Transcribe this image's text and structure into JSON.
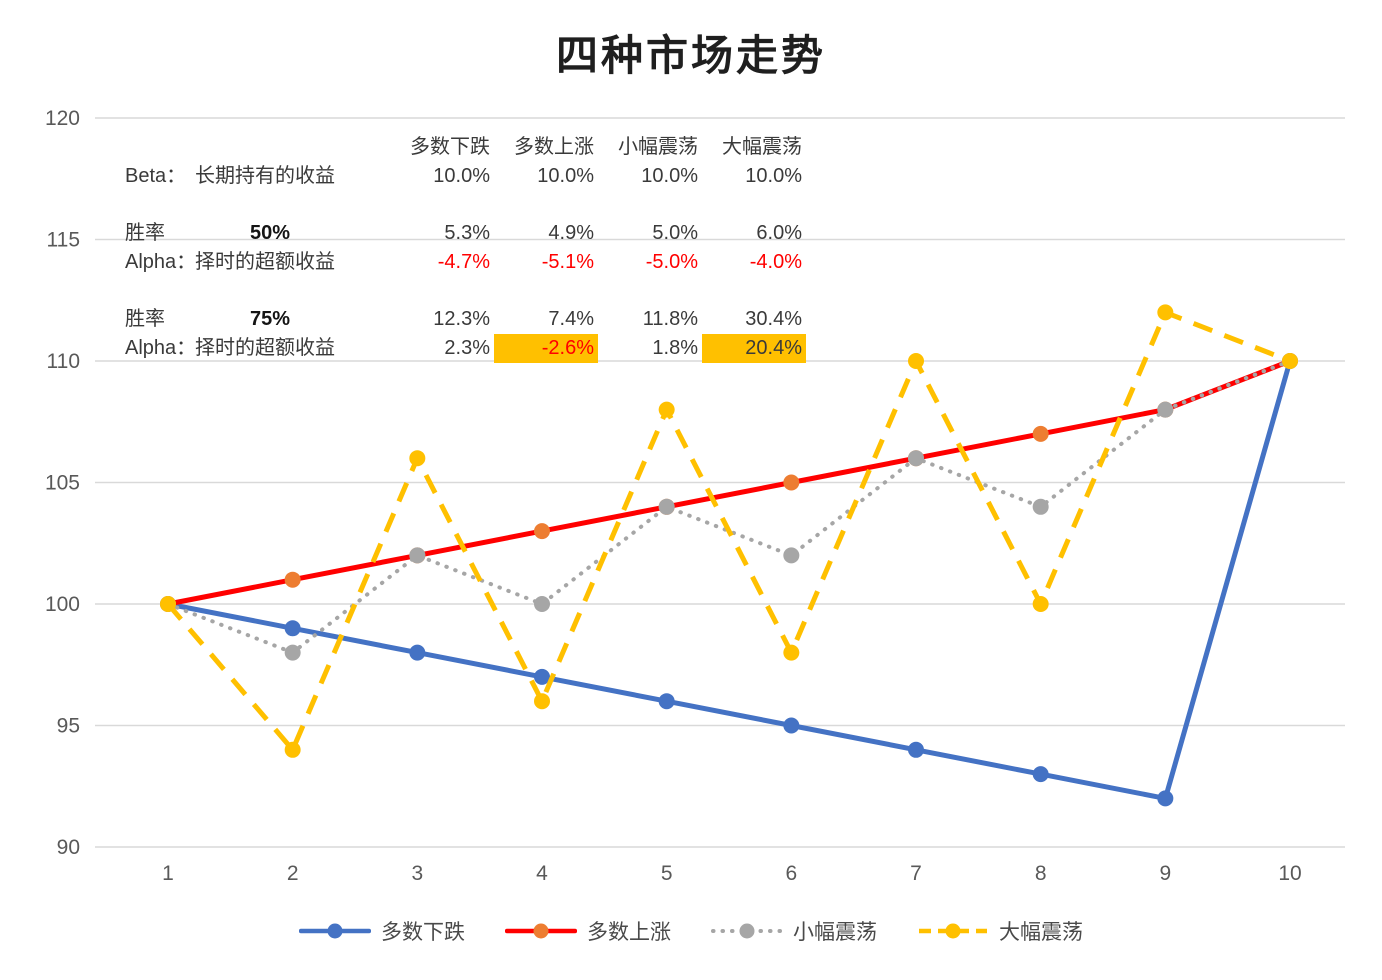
{
  "title": "四种市场走势",
  "colors": {
    "negative_text": "#FF0000",
    "highlight_bg": "#FFC000",
    "gridline": "#D9D9D9",
    "axis_text": "#595959"
  },
  "stats_table": {
    "headers": [
      "多数下跌",
      "多数上涨",
      "小幅震荡",
      "大幅震荡"
    ],
    "rows": {
      "beta": {
        "label": "Beta：",
        "desc": "长期持有的收益",
        "values": [
          "10.0%",
          "10.0%",
          "10.0%",
          "10.0%"
        ]
      },
      "win50": {
        "label": "胜率",
        "value": "50%",
        "returns": [
          "5.3%",
          "4.9%",
          "5.0%",
          "6.0%"
        ]
      },
      "alpha50": {
        "label": "Alpha：",
        "desc": "择时的超额收益",
        "values": [
          "-4.7%",
          "-5.1%",
          "-5.0%",
          "-4.0%"
        ]
      },
      "win75": {
        "label": "胜率",
        "value": "75%",
        "returns": [
          "12.3%",
          "7.4%",
          "11.8%",
          "30.4%"
        ]
      },
      "alpha75": {
        "label": "Alpha：",
        "desc": "择时的超额收益",
        "values": [
          "2.3%",
          "-2.6%",
          "1.8%",
          "20.4%"
        ]
      }
    }
  },
  "chart_data": {
    "type": "line",
    "title": "四种市场走势",
    "xlabel": "",
    "ylabel": "",
    "x": [
      1,
      2,
      3,
      4,
      5,
      6,
      7,
      8,
      9,
      10
    ],
    "ylim": [
      90,
      120
    ],
    "yticks": [
      90,
      95,
      100,
      105,
      110,
      115,
      120
    ],
    "grid": true,
    "legend_position": "bottom",
    "series": [
      {
        "name": "多数下跌",
        "color": "#4472C4",
        "marker_color": "#4472C4",
        "width": 5,
        "dash": null,
        "linecap": "round",
        "legend_dash": null,
        "values": [
          100,
          99,
          98,
          97,
          96,
          95,
          94,
          93,
          92,
          110
        ]
      },
      {
        "name": "多数上涨",
        "color": "#FF0000",
        "marker_color": "#ED7D31",
        "width": 5,
        "dash": null,
        "linecap": "round",
        "legend_dash": null,
        "values": [
          100,
          101,
          102,
          103,
          104,
          105,
          106,
          107,
          108,
          110
        ]
      },
      {
        "name": "小幅震荡",
        "color": "#A6A6A6",
        "marker_color": "#A6A6A6",
        "width": 4,
        "dash": "0.5 9",
        "linecap": "round",
        "legend_dash": "0.5 9",
        "values": [
          100,
          98,
          102,
          100,
          104,
          102,
          106,
          104,
          108,
          110
        ]
      },
      {
        "name": "大幅震荡",
        "color": "#FFC000",
        "marker_color": "#FFC000",
        "width": 5,
        "dash": "20 13",
        "linecap": "butt",
        "legend_dash": "12 7",
        "values": [
          100,
          94,
          106,
          96,
          108,
          98,
          110,
          100,
          112,
          110
        ]
      }
    ]
  }
}
